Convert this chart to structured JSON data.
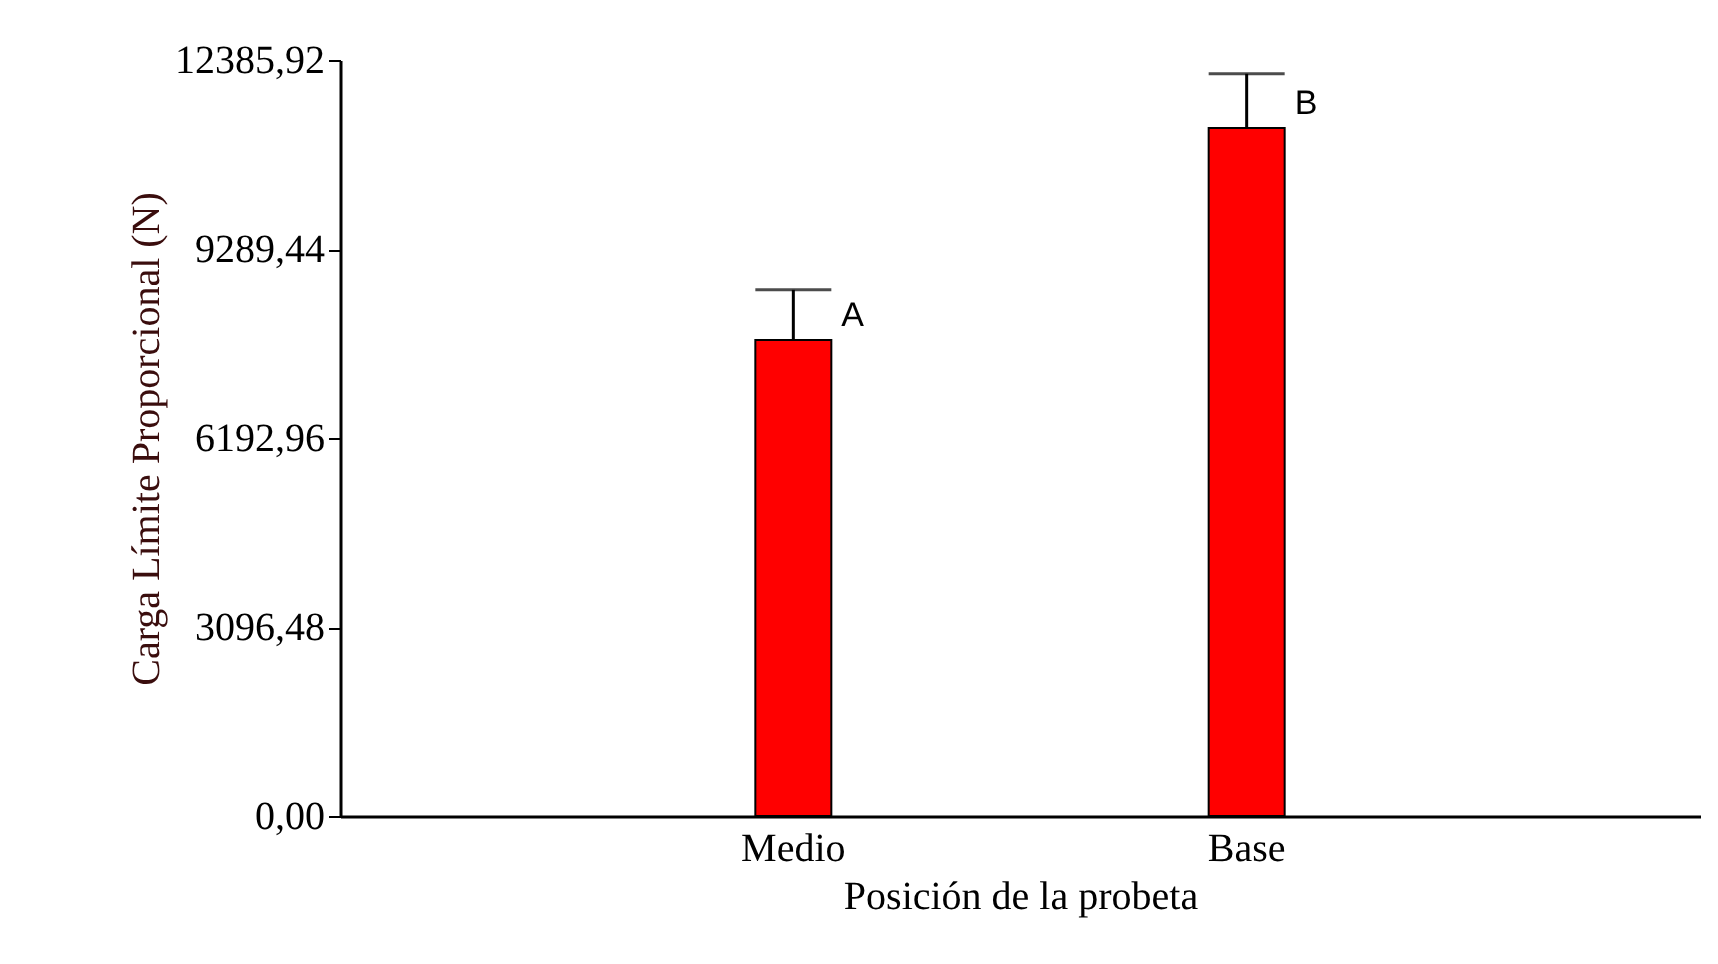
{
  "chart_data": {
    "type": "bar",
    "xlabel": "Posición de la probeta",
    "ylabel": "Carga Límite Proporcional (N)",
    "categories": [
      "Medio",
      "Base"
    ],
    "series": [
      {
        "color": "#ff0000",
        "values": [
          7800,
          11270
        ],
        "errors": [
          [
            7800,
            8620
          ],
          [
            11270,
            12160
          ]
        ]
      }
    ],
    "ylim": [
      0,
      12385.92
    ],
    "yticks": [
      {
        "value": 0,
        "label": "0,00"
      },
      {
        "value": 3096.48,
        "label": "3096,48"
      },
      {
        "value": 6192.96,
        "label": "6192,96"
      },
      {
        "value": 9289.44,
        "label": "9289,44"
      },
      {
        "value": 12385.92,
        "label": "12385,92"
      }
    ],
    "annotations": [
      {
        "text": "A",
        "x": "Medio",
        "y": 7800
      },
      {
        "text": "B",
        "x": "Base",
        "y": 11270
      }
    ],
    "grid": false
  }
}
